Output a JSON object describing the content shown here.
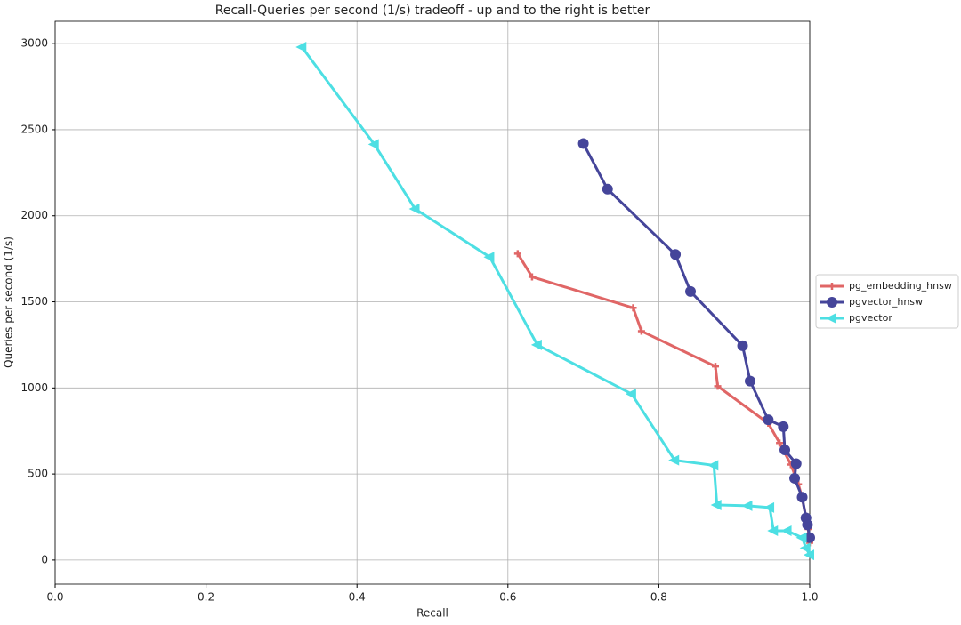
{
  "chart_data": {
    "type": "line",
    "title": "Recall-Queries per second (1/s) tradeoff - up and to the right is better",
    "x_label": "Recall",
    "y_label": "Queries per second (1/s)",
    "xlim": [
      0,
      1
    ],
    "ylim": [
      -140,
      3130
    ],
    "xticks": [
      {
        "value": 0,
        "label": "0.0"
      },
      0.2,
      0.4,
      0.6,
      0.8,
      {
        "value": 1,
        "label": "1.0"
      }
    ],
    "yticks": [
      0,
      500,
      1000,
      1500,
      2000,
      2500,
      3000
    ],
    "grid": true,
    "legend": "outside right",
    "series": [
      {
        "name": "pg_embedding_hnsw",
        "color": "#e06666",
        "marker": "plus",
        "x": [
          0.613,
          0.632,
          0.766,
          0.777,
          0.875,
          0.878,
          0.945,
          0.96,
          0.975,
          0.985,
          0.99,
          0.995,
          0.998,
          1.0
        ],
        "values": [
          1780,
          1645,
          1465,
          1330,
          1125,
          1010,
          795,
          680,
          555,
          440,
          360,
          250,
          180,
          100
        ]
      },
      {
        "name": "pgvector_hnsw",
        "color": "#45459a",
        "marker": "circle",
        "x": [
          0.7,
          0.732,
          0.822,
          0.842,
          0.911,
          0.921,
          0.945,
          0.965,
          0.967,
          0.982,
          0.98,
          0.99,
          0.995,
          0.997,
          1.0
        ],
        "values": [
          2420,
          2155,
          1775,
          1560,
          1245,
          1040,
          815,
          775,
          640,
          560,
          475,
          365,
          245,
          205,
          130
        ]
      },
      {
        "name": "pgvector",
        "color": "#4ddfe3",
        "marker": "triangle-left",
        "x": [
          0.327,
          0.423,
          0.477,
          0.576,
          0.639,
          0.764,
          0.821,
          0.873,
          0.877,
          0.918,
          0.947,
          0.952,
          0.97,
          0.99,
          0.995,
          1.0
        ],
        "values": [
          2980,
          2415,
          2040,
          1760,
          1250,
          965,
          580,
          550,
          320,
          315,
          305,
          170,
          170,
          130,
          70,
          30
        ]
      }
    ]
  }
}
